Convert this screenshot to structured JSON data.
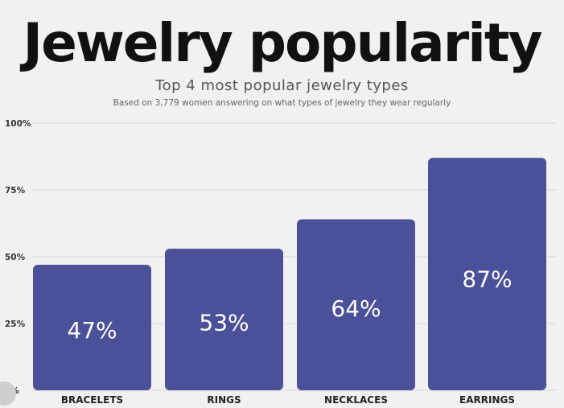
{
  "title": "Jewelry popularity",
  "subtitle": "Top 4 most popular jewelry types",
  "note": "Based on 3,779 women answering on what types of jewelry they wear regularly",
  "colors": {
    "bar": "#4a5199",
    "grid": "#d8d8d8",
    "background": "#f1f1f1"
  },
  "chart_data": {
    "type": "bar",
    "categories": [
      "BRACELETS",
      "RINGS",
      "NECKLACES",
      "EARRINGS"
    ],
    "values": [
      47,
      53,
      64,
      87
    ],
    "data_labels": [
      "47%",
      "53%",
      "64%",
      "87%"
    ],
    "yticks": [
      "0%",
      "25%",
      "50%",
      "75%",
      "100%"
    ],
    "ylim": [
      0,
      100
    ],
    "grid": true,
    "legend": "none"
  }
}
